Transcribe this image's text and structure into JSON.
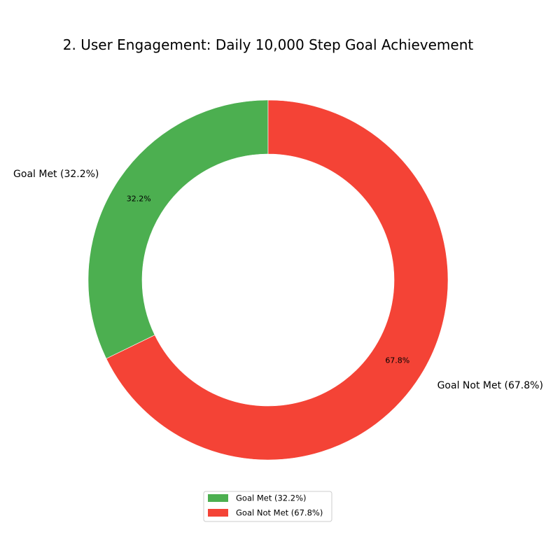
{
  "chart_data": {
    "type": "pie",
    "variant": "donut",
    "title": "2. User Engagement: Daily 10,000 Step Goal Achievement",
    "slices": [
      {
        "label": "Goal Met (32.2%)",
        "value": 32.2,
        "pct_label": "32.2%",
        "color": "#4caf50"
      },
      {
        "label": "Goal Not Met (67.8%)",
        "value": 67.8,
        "pct_label": "67.8%",
        "color": "#f44336"
      }
    ],
    "legend": {
      "position": "bottom-center",
      "entries": [
        "Goal Met (32.2%)",
        "Goal Not Met (67.8%)"
      ]
    },
    "start_angle": "12 o'clock",
    "direction": "counterclockwise"
  }
}
